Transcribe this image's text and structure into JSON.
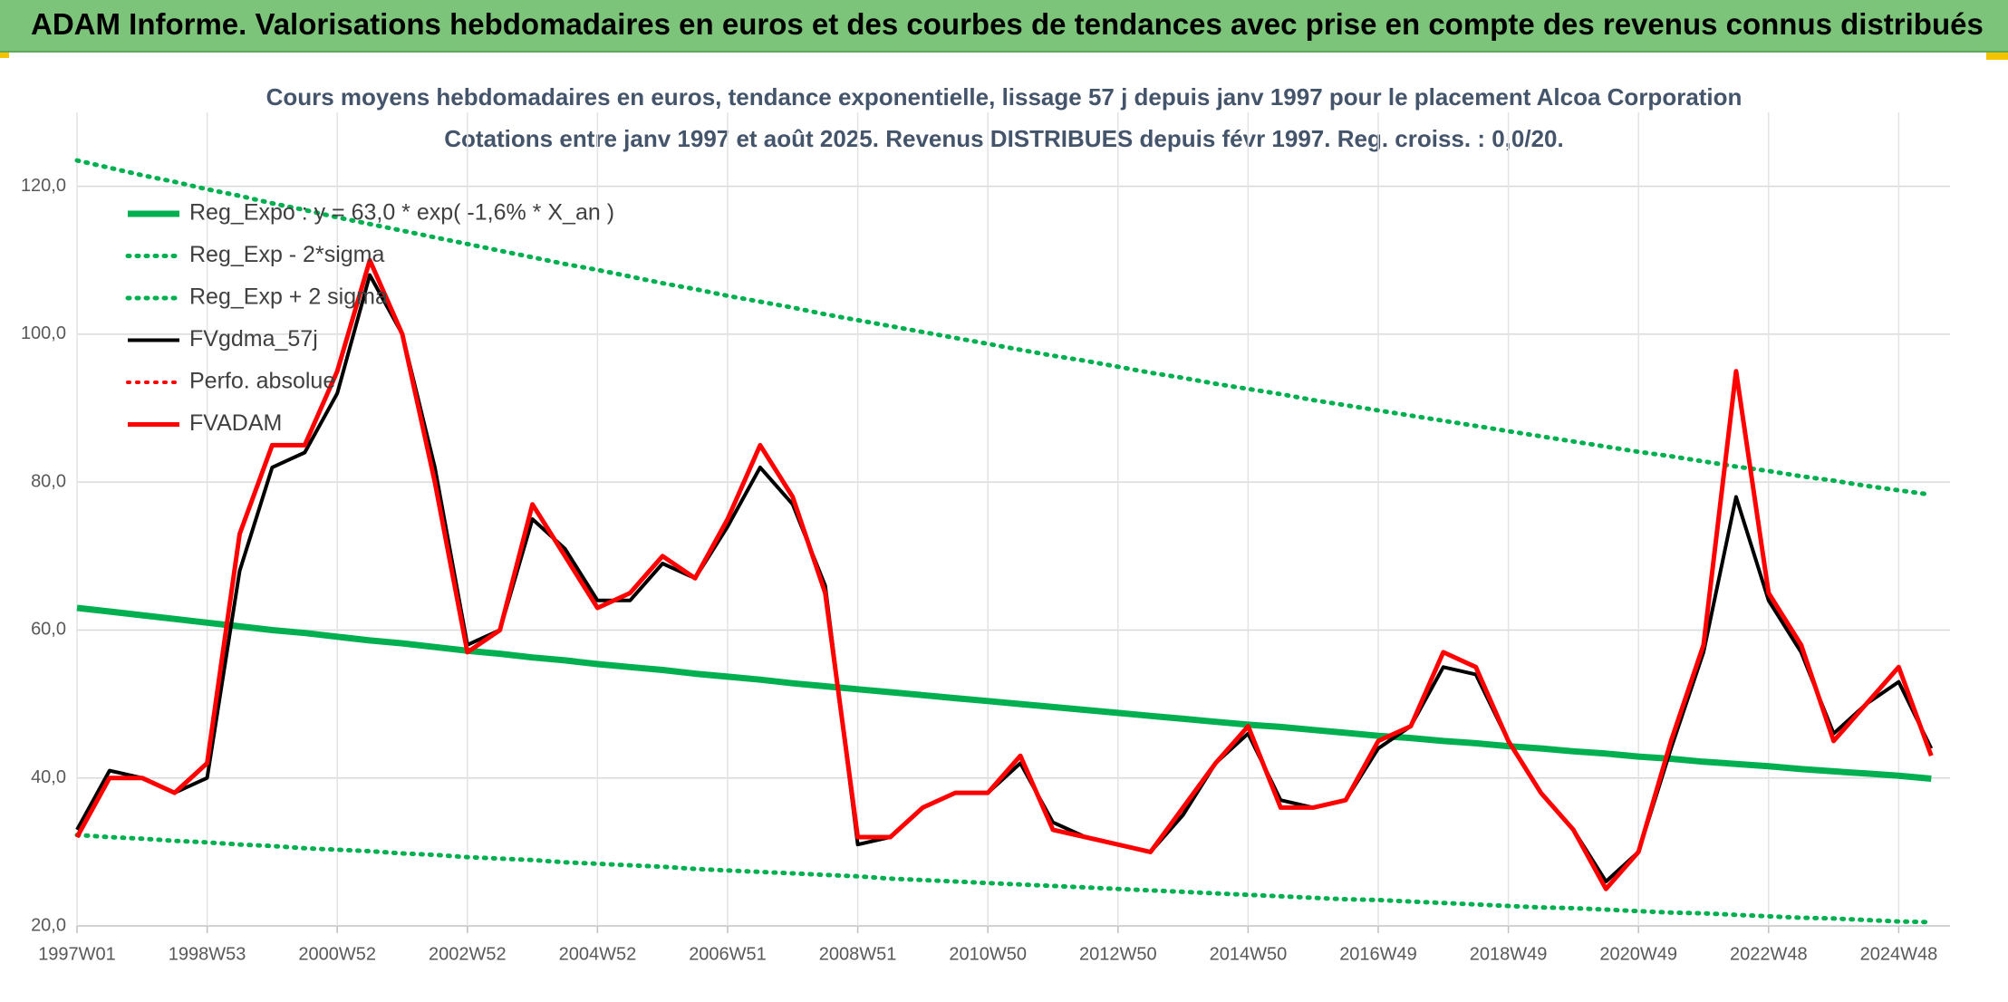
{
  "header_title": "ADAM Informe. Valorisations hebdomadaires en euros et des courbes de tendances avec prise en compte des revenus connus distribués",
  "chart_data": {
    "type": "line",
    "title": "Cours moyens hebdomadaires en euros, tendance exponentielle, lissage 57 j depuis janv 1997 pour le placement Alcoa Corporation",
    "subtitle": "Cotations entre janv 1997 et août 2025. Revenus DISTRIBUES depuis févr 1997. Reg. croiss. : 0,0/20.",
    "categories": [
      "1997W01",
      null,
      null,
      null,
      "1998W53",
      null,
      null,
      null,
      "2000W52",
      null,
      null,
      null,
      "2002W52",
      null,
      null,
      null,
      "2004W52",
      null,
      null,
      null,
      "2006W51",
      null,
      null,
      null,
      "2008W51",
      null,
      null,
      null,
      "2010W50",
      null,
      null,
      null,
      "2012W50",
      null,
      null,
      null,
      "2014W50",
      null,
      null,
      null,
      "2016W49",
      null,
      null,
      null,
      "2018W49",
      null,
      null,
      null,
      "2020W49",
      null,
      null,
      null,
      "2022W48",
      null,
      null,
      null,
      "2024W48",
      null
    ],
    "ylim": [
      20,
      130
    ],
    "yticks": [
      {
        "value": 20,
        "label": "20,0"
      },
      {
        "value": 40,
        "label": "40,0"
      },
      {
        "value": 60,
        "label": "60,0"
      },
      {
        "value": 80,
        "label": "80,0"
      },
      {
        "value": 100,
        "label": "100,0"
      },
      {
        "value": 120,
        "label": "120,0"
      }
    ],
    "grid": true,
    "legend": "upper left",
    "series": [
      {
        "name": "Reg_Expo : y = 63,0 * exp( -1,6% *  X_an )",
        "color": "#00b050",
        "style": "solid",
        "width": 7,
        "values": [
          63.0,
          62.5,
          62.0,
          61.5,
          61.0,
          60.5,
          60.0,
          59.6,
          59.1,
          58.6,
          58.2,
          57.7,
          57.2,
          56.8,
          56.3,
          55.9,
          55.4,
          55.0,
          54.6,
          54.1,
          53.7,
          53.3,
          52.8,
          52.4,
          52.0,
          51.6,
          51.2,
          50.8,
          50.4,
          50.0,
          49.6,
          49.2,
          48.8,
          48.4,
          48.0,
          47.6,
          47.2,
          46.9,
          46.5,
          46.1,
          45.7,
          45.4,
          45.0,
          44.7,
          44.3,
          44.0,
          43.6,
          43.3,
          42.9,
          42.6,
          42.2,
          41.9,
          41.6,
          41.2,
          40.9,
          40.6,
          40.3,
          39.9
        ]
      },
      {
        "name": "Reg_Exp - 2*sigma",
        "color": "#00b050",
        "style": "dotted",
        "width": 5,
        "values": [
          32.3,
          32.0,
          31.8,
          31.5,
          31.3,
          31.0,
          30.8,
          30.5,
          30.3,
          30.1,
          29.8,
          29.6,
          29.3,
          29.1,
          28.9,
          28.6,
          28.4,
          28.2,
          28.0,
          27.7,
          27.5,
          27.3,
          27.1,
          26.9,
          26.7,
          26.4,
          26.2,
          26.0,
          25.8,
          25.6,
          25.4,
          25.2,
          25.0,
          24.8,
          24.6,
          24.4,
          24.2,
          24.0,
          23.8,
          23.6,
          23.5,
          23.3,
          23.1,
          22.9,
          22.7,
          22.5,
          22.4,
          22.2,
          22.0,
          21.8,
          21.7,
          21.5,
          21.3,
          21.1,
          21.0,
          20.8,
          20.6,
          20.5
        ]
      },
      {
        "name": "Reg_Exp + 2 sigma",
        "color": "#00b050",
        "style": "dotted",
        "width": 5,
        "values": [
          123.5,
          122.5,
          121.5,
          120.6,
          119.6,
          118.7,
          117.7,
          116.8,
          115.8,
          114.9,
          114.0,
          113.1,
          112.2,
          111.3,
          110.4,
          109.5,
          108.7,
          107.8,
          106.9,
          106.1,
          105.2,
          104.4,
          103.6,
          102.7,
          101.9,
          101.1,
          100.3,
          99.5,
          98.7,
          97.9,
          97.1,
          96.4,
          95.6,
          94.8,
          94.1,
          93.3,
          92.6,
          91.9,
          91.1,
          90.4,
          89.7,
          89.0,
          88.3,
          87.6,
          86.9,
          86.2,
          85.5,
          84.8,
          84.1,
          83.5,
          82.8,
          82.1,
          81.5,
          80.8,
          80.2,
          79.5,
          78.9,
          78.3
        ]
      },
      {
        "name": "FVgdma_57j",
        "color": "#000000",
        "style": "solid",
        "width": 4,
        "values": [
          33,
          41,
          40,
          38,
          40,
          68,
          82,
          84,
          92,
          108,
          100,
          82,
          58,
          60,
          75,
          71,
          64,
          64,
          69,
          67,
          74,
          82,
          77,
          66,
          31,
          32,
          36,
          38,
          38,
          42,
          34,
          32,
          31,
          30,
          35,
          42,
          46,
          37,
          36,
          37,
          44,
          47,
          55,
          54,
          45,
          38,
          33,
          26,
          30,
          44,
          57,
          78,
          64,
          57,
          46,
          50,
          53,
          44
        ]
      },
      {
        "name": "Perfo. absolue",
        "color": "#ff0000",
        "style": "dotted",
        "width": 4,
        "values": [
          null,
          null,
          null,
          null,
          null,
          null,
          null,
          null,
          null,
          null,
          null,
          null,
          null,
          null,
          null,
          null,
          null,
          null,
          null,
          null,
          null,
          null,
          null,
          null,
          null,
          null,
          null,
          null,
          null,
          null,
          null,
          null,
          null,
          null,
          null,
          null,
          null,
          null,
          null,
          null,
          null,
          null,
          null,
          null,
          null,
          null,
          null,
          null,
          null,
          null,
          null,
          null,
          null,
          null,
          null,
          null,
          null,
          null
        ]
      },
      {
        "name": "FVADAM",
        "color": "#ff0000",
        "style": "solid",
        "width": 5,
        "values": [
          32,
          40,
          40,
          38,
          42,
          73,
          85,
          85,
          95,
          110,
          100,
          80,
          57,
          60,
          77,
          70,
          63,
          65,
          70,
          67,
          75,
          85,
          78,
          65,
          32,
          32,
          36,
          38,
          38,
          43,
          33,
          32,
          31,
          30,
          36,
          42,
          47,
          36,
          36,
          37,
          45,
          47,
          57,
          55,
          45,
          38,
          33,
          25,
          30,
          45,
          58,
          95,
          65,
          58,
          45,
          50,
          55,
          43
        ]
      }
    ]
  }
}
